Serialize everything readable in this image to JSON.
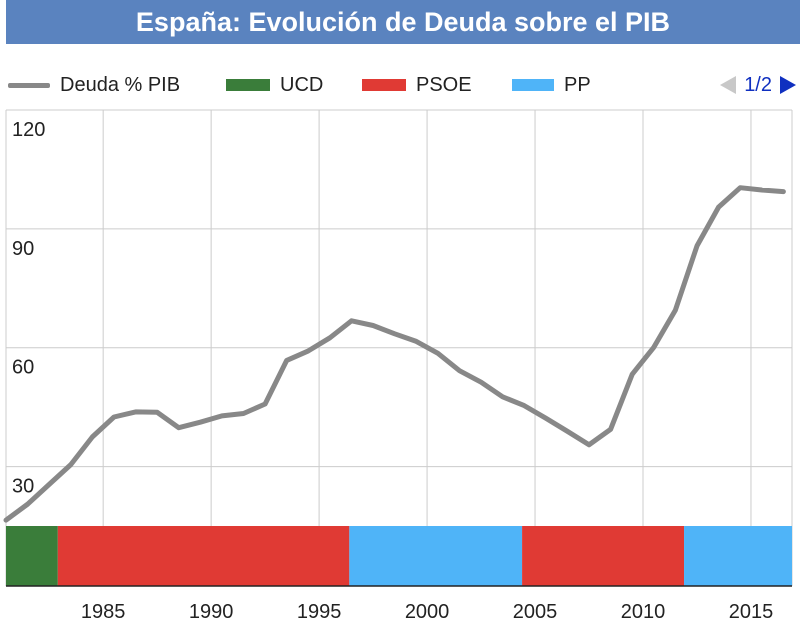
{
  "title": "España: Evolución de Deuda sobre el PIB",
  "legend": [
    {
      "label": "Deuda % PIB",
      "color": "#888888",
      "kind": "line"
    },
    {
      "label": "UCD",
      "color": "#3a7d3a",
      "kind": "box"
    },
    {
      "label": "PSOE",
      "color": "#e03a34",
      "kind": "box"
    },
    {
      "label": "PP",
      "color": "#4fb4f8",
      "kind": "box"
    }
  ],
  "pager": {
    "text": "1/2",
    "prev_icon": "triangle-left-icon",
    "next_icon": "triangle-right-icon"
  },
  "chart_data": {
    "type": "line",
    "title": "España: Evolución de Deuda sobre el PIB",
    "xlabel": "",
    "ylabel": "",
    "xlim": [
      1980.5,
      2016.9
    ],
    "ylim": [
      15,
      120
    ],
    "x_ticks": [
      1985,
      1990,
      1995,
      2000,
      2005,
      2010,
      2015
    ],
    "y_ticks": [
      30,
      60,
      90,
      120
    ],
    "grid": true,
    "line_color": "#888888",
    "series": [
      {
        "name": "Deuda % PIB",
        "x": [
          1980.5,
          1981.5,
          1982.5,
          1983.5,
          1984.5,
          1985.5,
          1986.5,
          1987.5,
          1988.5,
          1989.5,
          1990.5,
          1991.5,
          1992.5,
          1993.5,
          1994.5,
          1995.5,
          1996.5,
          1997.5,
          1998.5,
          1999.5,
          2000.5,
          2001.5,
          2002.5,
          2003.5,
          2004.5,
          2005.5,
          2006.5,
          2007.5,
          2008.5,
          2009.5,
          2010.5,
          2011.5,
          2012.5,
          2013.5,
          2014.5,
          2015.5,
          2016.5
        ],
        "values": [
          16.5,
          20.5,
          25.5,
          30.5,
          37.5,
          42.5,
          43.8,
          43.7,
          39.8,
          41.2,
          42.8,
          43.4,
          45.8,
          56.8,
          59.2,
          62.5,
          66.8,
          65.6,
          63.5,
          61.6,
          58.6,
          54.2,
          51.3,
          47.6,
          45.4,
          42.2,
          38.9,
          35.5,
          39.4,
          53.3,
          60.1,
          69.5,
          85.7,
          95.5,
          100.4,
          99.8,
          99.4
        ]
      }
    ],
    "party_bands": [
      {
        "party": "UCD",
        "start": 1980.5,
        "end": 1982.9,
        "color": "#3a7d3a"
      },
      {
        "party": "PSOE",
        "start": 1982.9,
        "end": 1996.4,
        "color": "#e03a34"
      },
      {
        "party": "PP",
        "start": 1996.4,
        "end": 2004.4,
        "color": "#4fb4f8"
      },
      {
        "party": "PSOE",
        "start": 2004.4,
        "end": 2011.9,
        "color": "#e03a34"
      },
      {
        "party": "PP",
        "start": 2011.9,
        "end": 2016.9,
        "color": "#4fb4f8"
      }
    ]
  }
}
